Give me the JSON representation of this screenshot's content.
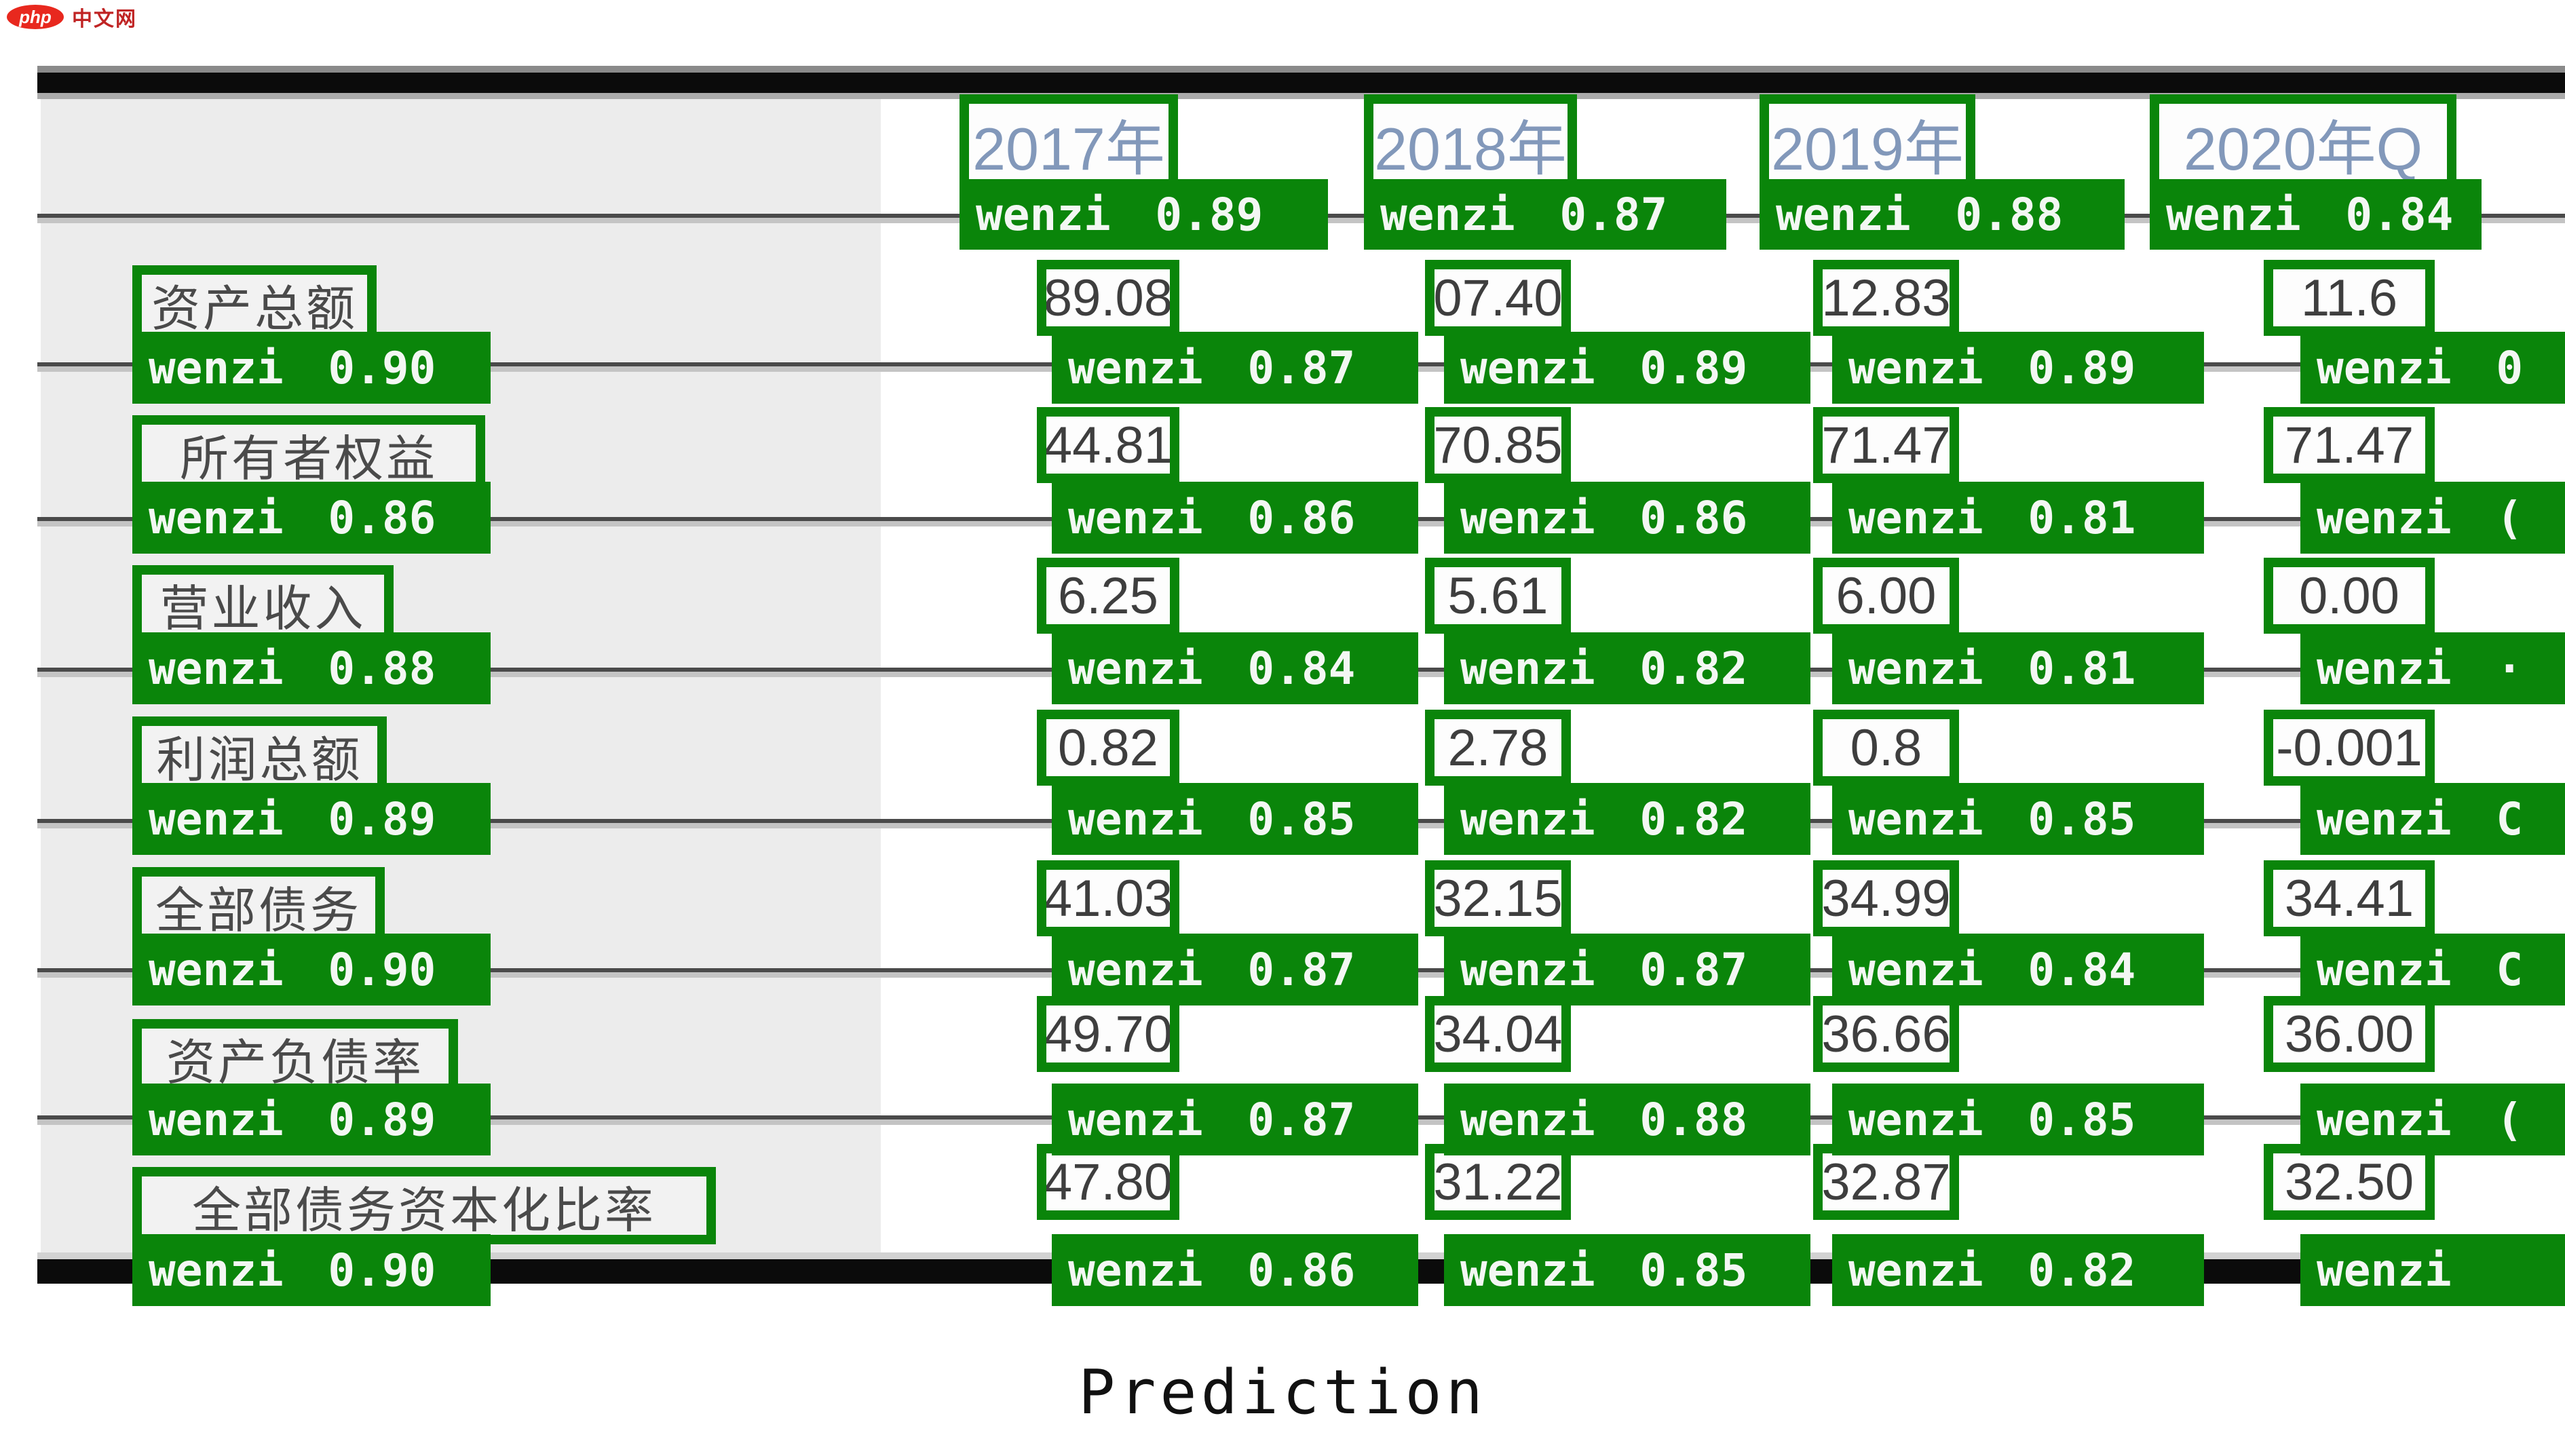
{
  "brand": {
    "badge": "php",
    "name": "中文网"
  },
  "caption": "Prediction",
  "detection": {
    "class_name": "wenzi"
  },
  "table": {
    "years": [
      {
        "text": "2017年",
        "conf": "wenzi 0.89"
      },
      {
        "text": "2018年",
        "conf": "wenzi 0.87"
      },
      {
        "text": "2019年",
        "conf": "wenzi 0.88"
      },
      {
        "text": "2020年Q",
        "conf": "wenzi 0.84"
      }
    ],
    "rows": [
      {
        "label": "资产总额",
        "label_conf": "wenzi 0.90",
        "values": [
          "89.08",
          "07.40",
          "12.83",
          "11.6"
        ],
        "value_confs": [
          "wenzi 0.87",
          "wenzi 0.89",
          "wenzi 0.89",
          "wenzi 0"
        ]
      },
      {
        "label": "所有者权益",
        "label_conf": "wenzi 0.86",
        "values": [
          "44.81",
          "70.85",
          "71.47",
          "71.47"
        ],
        "value_confs": [
          "wenzi 0.86",
          "wenzi 0.86",
          "wenzi 0.81",
          "wenzi ("
        ]
      },
      {
        "label": "营业收入",
        "label_conf": "wenzi 0.88",
        "values": [
          "6.25",
          "5.61",
          "6.00",
          "0.00"
        ],
        "value_confs": [
          "wenzi 0.84",
          "wenzi 0.82",
          "wenzi 0.81",
          "wenzi ·"
        ]
      },
      {
        "label": "利润总额",
        "label_conf": "wenzi 0.89",
        "values": [
          "0.82",
          "2.78",
          "0.8",
          "-0.001"
        ],
        "value_confs": [
          "wenzi 0.85",
          "wenzi 0.82",
          "wenzi 0.85",
          "wenzi C"
        ]
      },
      {
        "label": "全部债务",
        "label_conf": "wenzi 0.90",
        "values": [
          "41.03",
          "32.15",
          "34.99",
          "34.41"
        ],
        "value_confs": [
          "wenzi 0.87",
          "wenzi 0.87",
          "wenzi 0.84",
          "wenzi C"
        ]
      },
      {
        "label": "资产负债率",
        "label_conf": "wenzi 0.89",
        "values": [
          "49.70",
          "34.04",
          "36.66",
          "36.00"
        ],
        "value_confs": [
          "wenzi 0.87",
          "wenzi 0.88",
          "wenzi 0.85",
          "wenzi ("
        ]
      },
      {
        "label": "全部债务资本化比率",
        "label_conf": "wenzi 0.90",
        "values": [
          "47.80",
          "31.22",
          "32.87",
          "32.50"
        ],
        "value_confs": [
          "wenzi 0.86",
          "wenzi 0.85",
          "wenzi 0.82",
          "wenzi"
        ]
      }
    ]
  },
  "colors": {
    "detection_green": "#0a850a",
    "brand_red": "#e8281e",
    "year_text_blue": "#8298ba",
    "cell_text_gray": "#3e3e3e",
    "panel_gray": "#ececec"
  }
}
